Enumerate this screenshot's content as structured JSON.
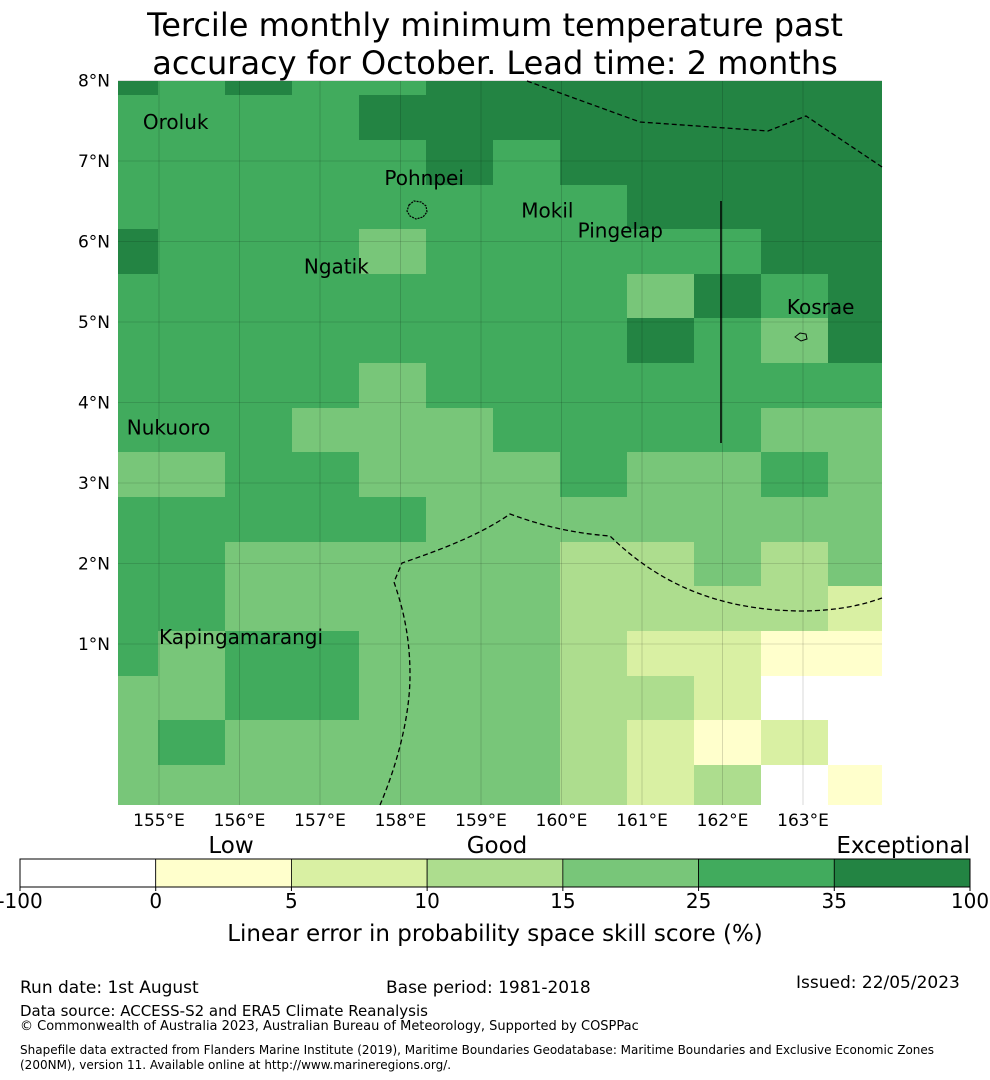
{
  "title_line1": "Tercile monthly minimum temperature past",
  "title_line2": "accuracy for October. Lead time: 2 months",
  "map": {
    "lon_ticks": [
      {
        "lon": 155,
        "label": "155°E"
      },
      {
        "lon": 156,
        "label": "156°E"
      },
      {
        "lon": 157,
        "label": "157°E"
      },
      {
        "lon": 158,
        "label": "158°E"
      },
      {
        "lon": 159,
        "label": "159°E"
      },
      {
        "lon": 160,
        "label": "160°E"
      },
      {
        "lon": 161,
        "label": "161°E"
      },
      {
        "lon": 162,
        "label": "162°E"
      },
      {
        "lon": 163,
        "label": "163°E"
      }
    ],
    "lat_ticks": [
      {
        "lat": 1,
        "label": "1°N"
      },
      {
        "lat": 2,
        "label": "2°N"
      },
      {
        "lat": 3,
        "label": "3°N"
      },
      {
        "lat": 4,
        "label": "4°N"
      },
      {
        "lat": 5,
        "label": "5°N"
      },
      {
        "lat": 6,
        "label": "6°N"
      },
      {
        "lat": 7,
        "label": "7°N"
      },
      {
        "lat": 8,
        "label": "8°N"
      }
    ],
    "places": [
      {
        "name": "Oroluk",
        "lon": 154.8,
        "lat": 7.4
      },
      {
        "name": "Pohnpei",
        "lon": 157.8,
        "lat": 6.7
      },
      {
        "name": "Mokil",
        "lon": 159.5,
        "lat": 6.3
      },
      {
        "name": "Pingelap",
        "lon": 160.2,
        "lat": 6.05
      },
      {
        "name": "Ngatik",
        "lon": 156.8,
        "lat": 5.6
      },
      {
        "name": "Kosrae",
        "lon": 162.8,
        "lat": 5.1
      },
      {
        "name": "Nukuoro",
        "lon": 154.6,
        "lat": 3.6
      },
      {
        "name": "Kapingamarangi",
        "lon": 155.0,
        "lat": 1.0
      }
    ]
  },
  "legend": {
    "category_labels": [
      "Low",
      "Good",
      "Exceptional"
    ],
    "tick_labels": [
      "-100",
      "0",
      "5",
      "10",
      "15",
      "25",
      "35",
      "100"
    ],
    "colors": [
      "#ffffff",
      "#ffffcc",
      "#d9f0a3",
      "#addd8e",
      "#78c679",
      "#41ab5d",
      "#238443"
    ],
    "xlabel": "Linear error in probability space skill score (%)"
  },
  "footer": {
    "run_date": "Run date: 1st August",
    "base_period": "Base period: 1981-2018",
    "issued": "Issued: 22/05/2023",
    "data_source": "Data source: ACCESS-S2 and ERA5 Climate Reanalysis",
    "copyright": "© Commonwealth of Australia 2023, Australian Bureau of Meteorology, Supported by COSPPac",
    "shapefile_note": "Shapefile data extracted from Flanders Marine Institute (2019), Maritime Boundaries Geodatabase: Maritime Boundaries and Exclusive Economic Zones (200NM), version 11. Available online at http://www.marineregions.org/."
  }
}
